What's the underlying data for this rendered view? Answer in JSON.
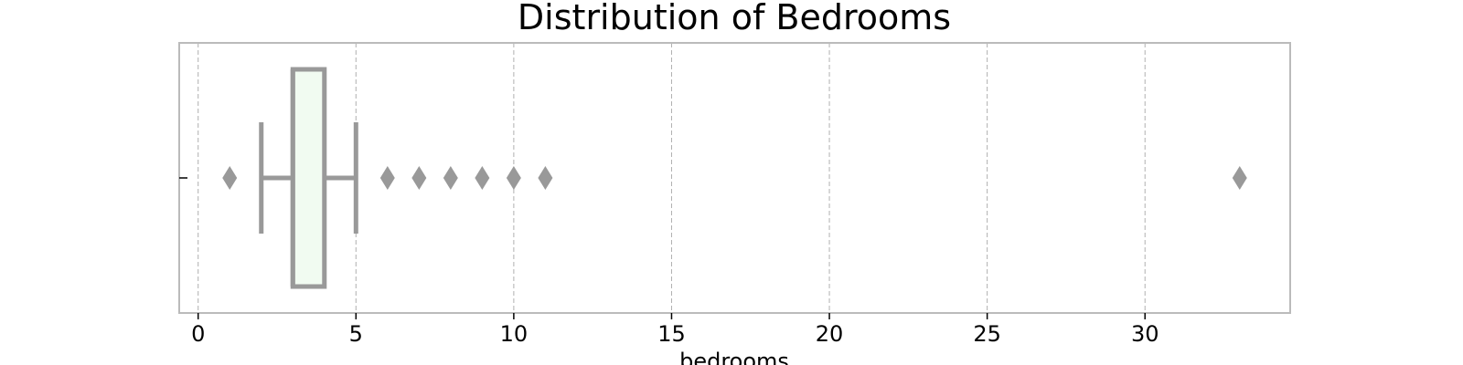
{
  "chart_data": {
    "type": "box",
    "title": "Distribution of Bedrooms",
    "xlabel": "bedrooms",
    "ylabel": "",
    "orientation": "horizontal",
    "xlim": [
      -0.6,
      34.6
    ],
    "xticks": [
      0,
      5,
      10,
      15,
      20,
      25,
      30
    ],
    "grid": {
      "x": true,
      "y": false
    },
    "box": {
      "whisker_low": 2,
      "q1": 3,
      "median": 3,
      "q3": 4,
      "whisker_high": 5
    },
    "outliers": [
      1,
      6,
      7,
      8,
      9,
      10,
      11,
      33
    ],
    "colors": {
      "box_fill": "#f1fbf1",
      "box_edge": "#999999",
      "grid": "#b0b0b0",
      "frame": "#bbbbbb",
      "outlier": "#999999"
    }
  }
}
